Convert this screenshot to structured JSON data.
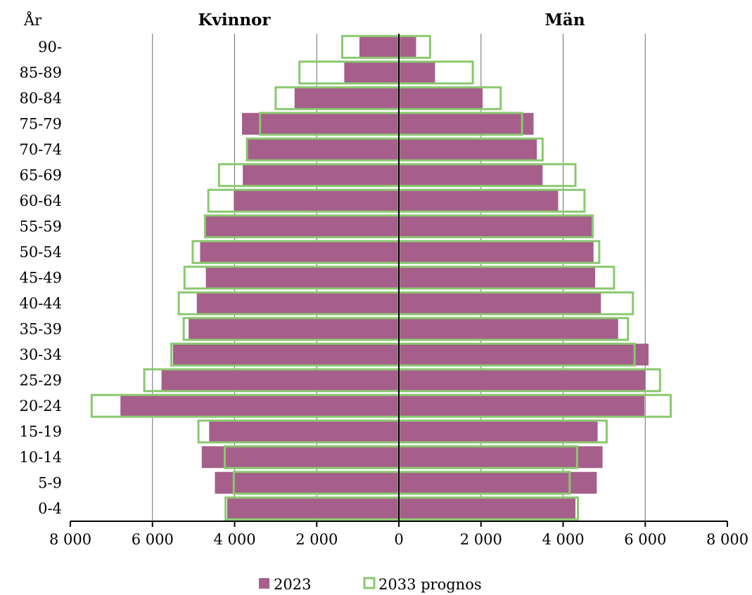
{
  "chart_data": {
    "type": "bar",
    "subtype": "population-pyramid",
    "y_axis_title": "År",
    "left_title": "Kvinnor",
    "right_title": "Män",
    "categories": [
      "0-4",
      "5-9",
      "10-14",
      "15-19",
      "20-24",
      "25-29",
      "30-34",
      "35-39",
      "40-44",
      "45-49",
      "50-54",
      "55-59",
      "60-64",
      "65-69",
      "70-74",
      "75-79",
      "80-84",
      "85-89",
      "90-"
    ],
    "xlim": [
      -8000,
      8000
    ],
    "x_ticks": [
      -8000,
      -6000,
      -4000,
      -2000,
      0,
      2000,
      4000,
      6000,
      8000
    ],
    "x_tick_labels": [
      "8 000",
      "6 000",
      "4 000",
      "2 000",
      "0",
      "2 000",
      "4 000",
      "6 000",
      "8 000"
    ],
    "grid": "vertical",
    "legend_position": "bottom",
    "series": [
      {
        "name": "2023",
        "style": "filled",
        "color": "#a55f8a",
        "women": [
          4180,
          4480,
          4800,
          4620,
          6780,
          5780,
          5500,
          5120,
          4920,
          4700,
          4840,
          4700,
          4020,
          3800,
          3680,
          3820,
          2540,
          1330,
          960
        ],
        "men": [
          4300,
          4820,
          4960,
          4840,
          5980,
          6000,
          6080,
          5340,
          4920,
          4780,
          4740,
          4700,
          3880,
          3500,
          3360,
          3280,
          2040,
          880,
          420
        ]
      },
      {
        "name": "2033 prognos",
        "style": "outline",
        "color": "#8bc870",
        "women": [
          4220,
          4020,
          4240,
          4880,
          7480,
          6200,
          5540,
          5240,
          5360,
          5220,
          5020,
          4720,
          4640,
          4380,
          3700,
          3380,
          3000,
          2420,
          1380
        ],
        "men": [
          4360,
          4160,
          4340,
          5060,
          6620,
          6360,
          5740,
          5580,
          5700,
          5240,
          4880,
          4720,
          4520,
          4300,
          3500,
          3000,
          2480,
          1800,
          760
        ]
      }
    ]
  }
}
